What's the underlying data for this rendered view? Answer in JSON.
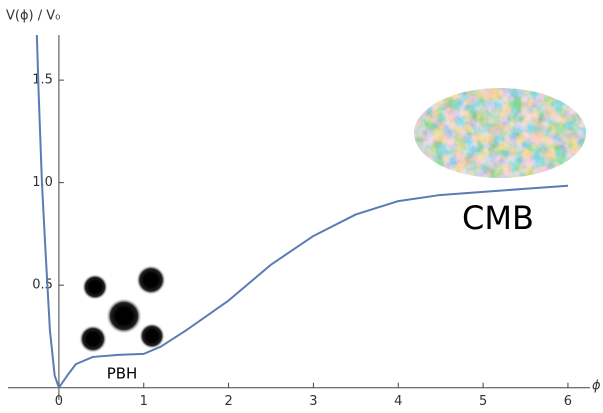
{
  "chart_data": {
    "type": "line",
    "x_label": "ϕ",
    "y_label": "V(ϕ) / V₀",
    "annotations": [
      "PBH",
      "CMB"
    ],
    "x": [
      -0.26,
      -0.24,
      -0.2,
      -0.165,
      -0.106,
      -0.05,
      0,
      0.1,
      0.2,
      0.4,
      0.7,
      1.0,
      1.2,
      1.5,
      2,
      2.5,
      3,
      3.5,
      4,
      4.5,
      5,
      5.5,
      6
    ],
    "series": [
      {
        "color": "#5b7bb5",
        "values": [
          1.72,
          1.45,
          1.0,
          0.72,
          0.28,
          0.06,
          0,
          0.06,
          0.115,
          0.15,
          0.16,
          0.165,
          0.2,
          0.28,
          0.425,
          0.6,
          0.74,
          0.845,
          0.91,
          0.94,
          0.955,
          0.97,
          0.985
        ]
      }
    ],
    "xlim": [
      -0.6,
      6.26
    ],
    "ylim": [
      -0.06,
      1.72
    ],
    "xticks": [
      0,
      1,
      2,
      3,
      4,
      5,
      6
    ],
    "yticks": [
      0.5,
      {
        "value": 1,
        "label": "1.0"
      },
      1.5
    ]
  }
}
